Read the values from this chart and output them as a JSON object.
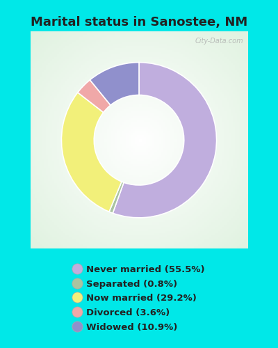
{
  "title": "Marital status in Sanostee, NM",
  "title_fontsize": 13,
  "title_fontweight": "bold",
  "slices": [
    {
      "label": "Never married (55.5%)",
      "value": 55.5,
      "color": "#c0aede"
    },
    {
      "label": "Separated (0.8%)",
      "value": 0.8,
      "color": "#aac4a0"
    },
    {
      "label": "Now married (29.2%)",
      "value": 29.2,
      "color": "#f2f07a"
    },
    {
      "label": "Divorced (3.6%)",
      "value": 3.6,
      "color": "#f0a8a8"
    },
    {
      "label": "Widowed (10.9%)",
      "value": 10.9,
      "color": "#9090cc"
    }
  ],
  "donut_width": 0.42,
  "background_color_outer": "#00e8e8",
  "chart_area_bg": "#e8f5e0",
  "watermark": "City-Data.com",
  "legend_fontsize": 9.5,
  "startangle": 90,
  "title_color": "#222222"
}
